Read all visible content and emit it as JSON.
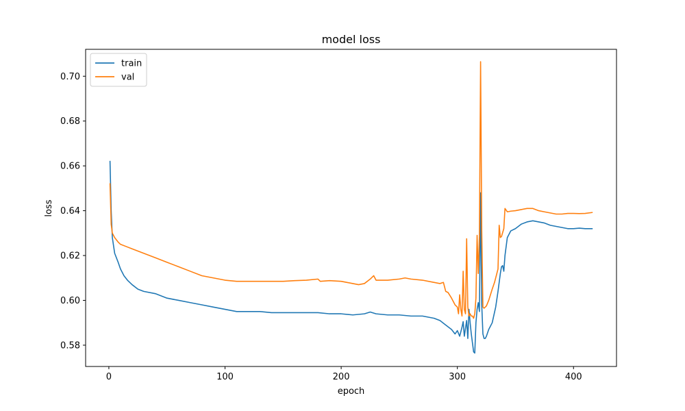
{
  "chart_data": {
    "type": "line",
    "title": "model loss",
    "xlabel": "epoch",
    "ylabel": "loss",
    "xlim": [
      -20,
      437
    ],
    "ylim": [
      0.5705,
      0.712
    ],
    "xticks": [
      0,
      100,
      200,
      300,
      400
    ],
    "yticks": [
      0.58,
      0.6,
      0.62,
      0.64,
      0.66,
      0.68,
      0.7
    ],
    "ytick_labels": [
      "0.58",
      "0.60",
      "0.62",
      "0.64",
      "0.66",
      "0.68",
      "0.70"
    ],
    "grid": false,
    "legend_position": "top-left",
    "series": [
      {
        "name": "train",
        "color": "#1f77b4",
        "points": [
          [
            1,
            0.662
          ],
          [
            2,
            0.64
          ],
          [
            3,
            0.628
          ],
          [
            5,
            0.621
          ],
          [
            8,
            0.617
          ],
          [
            10,
            0.614
          ],
          [
            13,
            0.611
          ],
          [
            16,
            0.609
          ],
          [
            20,
            0.607
          ],
          [
            25,
            0.605
          ],
          [
            30,
            0.604
          ],
          [
            40,
            0.603
          ],
          [
            50,
            0.601
          ],
          [
            60,
            0.6
          ],
          [
            70,
            0.599
          ],
          [
            80,
            0.598
          ],
          [
            90,
            0.597
          ],
          [
            100,
            0.596
          ],
          [
            110,
            0.595
          ],
          [
            120,
            0.595
          ],
          [
            130,
            0.595
          ],
          [
            140,
            0.5945
          ],
          [
            150,
            0.5945
          ],
          [
            160,
            0.5945
          ],
          [
            170,
            0.5945
          ],
          [
            180,
            0.5945
          ],
          [
            190,
            0.594
          ],
          [
            200,
            0.594
          ],
          [
            210,
            0.5935
          ],
          [
            220,
            0.594
          ],
          [
            225,
            0.5948
          ],
          [
            230,
            0.594
          ],
          [
            240,
            0.5935
          ],
          [
            250,
            0.5935
          ],
          [
            260,
            0.593
          ],
          [
            270,
            0.593
          ],
          [
            280,
            0.592
          ],
          [
            285,
            0.591
          ],
          [
            290,
            0.589
          ],
          [
            295,
            0.587
          ],
          [
            298,
            0.585
          ],
          [
            300,
            0.5865
          ],
          [
            302,
            0.584
          ],
          [
            304,
            0.588
          ],
          [
            305,
            0.5905
          ],
          [
            306,
            0.584
          ],
          [
            308,
            0.591
          ],
          [
            309,
            0.583
          ],
          [
            310,
            0.596
          ],
          [
            311,
            0.59
          ],
          [
            312,
            0.585
          ],
          [
            313,
            0.581
          ],
          [
            314,
            0.577
          ],
          [
            315,
            0.5765
          ],
          [
            316,
            0.59
          ],
          [
            317,
            0.596
          ],
          [
            318,
            0.599
          ],
          [
            319,
            0.595
          ],
          [
            320,
            0.648
          ],
          [
            321,
            0.598
          ],
          [
            322,
            0.585
          ],
          [
            323,
            0.583
          ],
          [
            324,
            0.583
          ],
          [
            325,
            0.584
          ],
          [
            327,
            0.587
          ],
          [
            330,
            0.59
          ],
          [
            333,
            0.597
          ],
          [
            335,
            0.604
          ],
          [
            337,
            0.612
          ],
          [
            338,
            0.615
          ],
          [
            339,
            0.6155
          ],
          [
            340,
            0.613
          ],
          [
            341,
            0.62
          ],
          [
            343,
            0.628
          ],
          [
            346,
            0.631
          ],
          [
            350,
            0.632
          ],
          [
            355,
            0.634
          ],
          [
            360,
            0.635
          ],
          [
            365,
            0.6355
          ],
          [
            370,
            0.635
          ],
          [
            375,
            0.6345
          ],
          [
            380,
            0.6335
          ],
          [
            385,
            0.633
          ],
          [
            390,
            0.6325
          ],
          [
            395,
            0.632
          ],
          [
            400,
            0.632
          ],
          [
            405,
            0.6322
          ],
          [
            410,
            0.632
          ],
          [
            416,
            0.632
          ]
        ]
      },
      {
        "name": "val",
        "color": "#ff7f0e",
        "points": [
          [
            1,
            0.652
          ],
          [
            2,
            0.634
          ],
          [
            3,
            0.63
          ],
          [
            5,
            0.628
          ],
          [
            8,
            0.626
          ],
          [
            10,
            0.625
          ],
          [
            15,
            0.624
          ],
          [
            20,
            0.623
          ],
          [
            25,
            0.622
          ],
          [
            30,
            0.621
          ],
          [
            40,
            0.619
          ],
          [
            50,
            0.617
          ],
          [
            60,
            0.615
          ],
          [
            70,
            0.613
          ],
          [
            80,
            0.611
          ],
          [
            90,
            0.61
          ],
          [
            100,
            0.609
          ],
          [
            110,
            0.6085
          ],
          [
            120,
            0.6085
          ],
          [
            130,
            0.6085
          ],
          [
            140,
            0.6085
          ],
          [
            150,
            0.6085
          ],
          [
            160,
            0.6088
          ],
          [
            170,
            0.609
          ],
          [
            180,
            0.6095
          ],
          [
            182,
            0.6085
          ],
          [
            190,
            0.6088
          ],
          [
            200,
            0.6085
          ],
          [
            205,
            0.608
          ],
          [
            210,
            0.6075
          ],
          [
            215,
            0.607
          ],
          [
            220,
            0.6075
          ],
          [
            225,
            0.6095
          ],
          [
            228,
            0.611
          ],
          [
            230,
            0.609
          ],
          [
            240,
            0.609
          ],
          [
            250,
            0.6095
          ],
          [
            255,
            0.61
          ],
          [
            260,
            0.6095
          ],
          [
            270,
            0.609
          ],
          [
            280,
            0.608
          ],
          [
            285,
            0.6075
          ],
          [
            288,
            0.608
          ],
          [
            290,
            0.604
          ],
          [
            292,
            0.6035
          ],
          [
            295,
            0.601
          ],
          [
            298,
            0.598
          ],
          [
            300,
            0.597
          ],
          [
            301,
            0.594
          ],
          [
            302,
            0.6025
          ],
          [
            303,
            0.596
          ],
          [
            304,
            0.593
          ],
          [
            305,
            0.613
          ],
          [
            306,
            0.596
          ],
          [
            307,
            0.594
          ],
          [
            308,
            0.6275
          ],
          [
            309,
            0.597
          ],
          [
            310,
            0.593
          ],
          [
            311,
            0.594
          ],
          [
            312,
            0.593
          ],
          [
            313,
            0.593
          ],
          [
            314,
            0.592
          ],
          [
            315,
            0.594
          ],
          [
            316,
            0.601
          ],
          [
            317,
            0.629
          ],
          [
            318,
            0.612
          ],
          [
            319,
            0.6285
          ],
          [
            320,
            0.7065
          ],
          [
            321,
            0.631
          ],
          [
            322,
            0.597
          ],
          [
            323,
            0.5965
          ],
          [
            325,
            0.5975
          ],
          [
            327,
            0.6
          ],
          [
            330,
            0.605
          ],
          [
            332,
            0.608
          ],
          [
            334,
            0.612
          ],
          [
            335,
            0.614
          ],
          [
            336,
            0.6335
          ],
          [
            337,
            0.628
          ],
          [
            338,
            0.6285
          ],
          [
            340,
            0.632
          ],
          [
            341,
            0.641
          ],
          [
            343,
            0.6395
          ],
          [
            346,
            0.6398
          ],
          [
            350,
            0.64
          ],
          [
            355,
            0.6405
          ],
          [
            360,
            0.641
          ],
          [
            365,
            0.641
          ],
          [
            370,
            0.64
          ],
          [
            375,
            0.6395
          ],
          [
            380,
            0.639
          ],
          [
            385,
            0.6385
          ],
          [
            390,
            0.6385
          ],
          [
            395,
            0.6388
          ],
          [
            400,
            0.6388
          ],
          [
            405,
            0.6387
          ],
          [
            410,
            0.6388
          ],
          [
            416,
            0.6392
          ]
        ]
      }
    ]
  }
}
